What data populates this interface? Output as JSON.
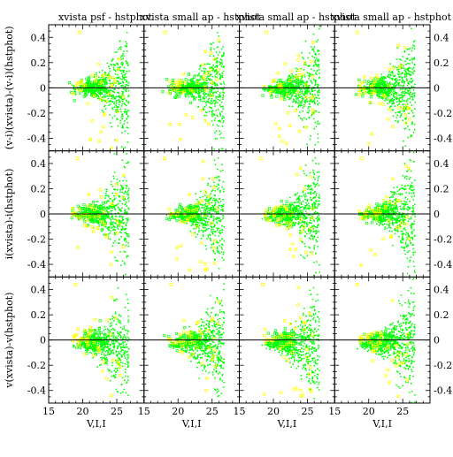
{
  "chart_data": {
    "type": "scatter",
    "layout": "3 rows x 4 columns small-multiple scatter grid",
    "column_titles": [
      "xvista psf - hstphot",
      "xvista small ap - hstphot",
      "xvista small ap - hstphot",
      "xvista small ap - hstphot"
    ],
    "row_ylabels": [
      "(v-i)(xvista)-(v-i)(hstphot)",
      "i(xvista)-i(hstphot)",
      "v(xvista)-v(hstphot)"
    ],
    "xlabel": "V,I,I",
    "xlim": [
      15,
      29
    ],
    "ylim": [
      -0.5,
      0.5
    ],
    "x_ticks": [
      15,
      20,
      25
    ],
    "y_ticks_left": [
      "0.4",
      "0.2",
      "0",
      "-0.2",
      "-0.4"
    ],
    "y_ticks_right": [
      "0.4",
      "0.2",
      "0",
      "-0.2",
      "-0.4"
    ],
    "series": [
      {
        "color": "#00ff00",
        "marker": "small dots"
      },
      {
        "color": "#ffff00",
        "marker": "open squares"
      }
    ],
    "colors": {
      "primary_points": "#00ff00",
      "secondary_points": "#ffff00",
      "zero_line": "#000000"
    },
    "grid": false,
    "reference_line": {
      "y": 0
    },
    "panel_samples": [
      [
        {
          "x": 18.2,
          "y": 0.45,
          "s": 1
        },
        {
          "x": 21.0,
          "y": 0.15,
          "s": 1
        },
        {
          "x": 24.5,
          "y": -0.12,
          "s": 0
        },
        {
          "x": 25.8,
          "y": -0.25,
          "s": 0
        }
      ]
    ]
  }
}
